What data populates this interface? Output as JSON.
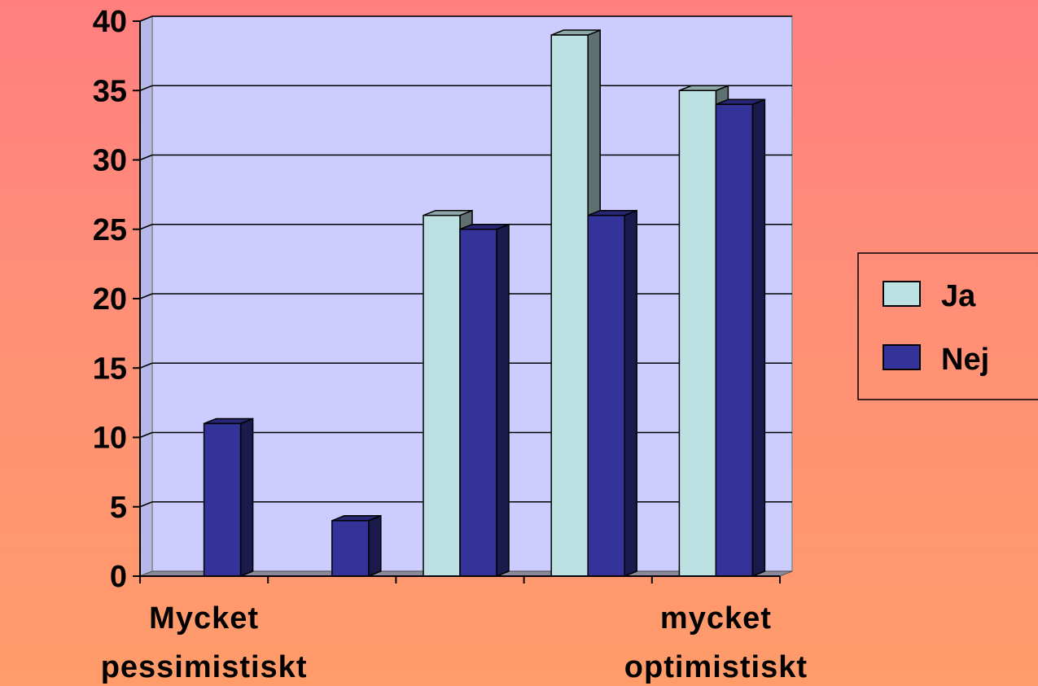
{
  "chart_data": {
    "type": "bar",
    "categories": [
      "Mycket pessimistiskt",
      "",
      "",
      "",
      "mycket optimistiskt"
    ],
    "x_tick_labels": [
      {
        "category_index": 0,
        "lines": [
          "Mycket",
          "pessimistiskt"
        ]
      },
      {
        "category_index": 4,
        "lines": [
          "mycket",
          "optimistiskt"
        ]
      }
    ],
    "series": [
      {
        "name": "Ja",
        "values": [
          0,
          0,
          26,
          39,
          35
        ],
        "color": "#bde0e2"
      },
      {
        "name": "Nej",
        "values": [
          11,
          4,
          25,
          26,
          34
        ],
        "color": "#333399"
      }
    ],
    "ylim": [
      0,
      40
    ],
    "yticks": [
      0,
      5,
      10,
      15,
      20,
      25,
      30,
      35,
      40
    ],
    "grid": true,
    "legend_position": "right",
    "plot_background": "#ccccff",
    "three_d": true
  }
}
